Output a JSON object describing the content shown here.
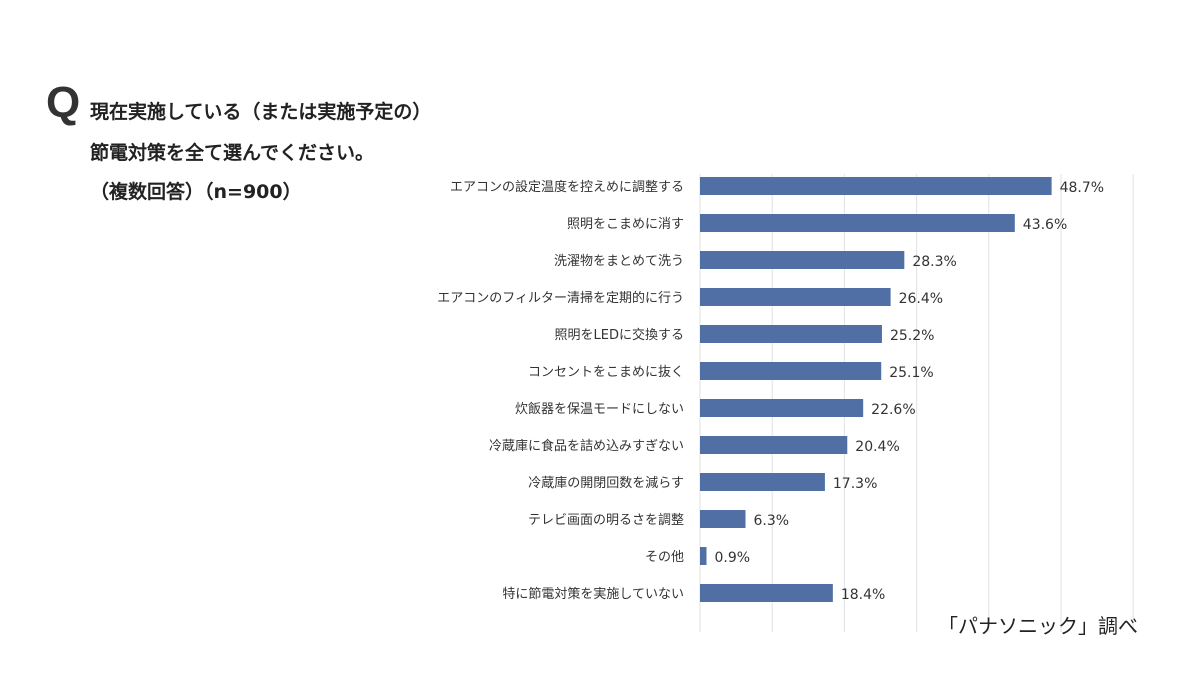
{
  "question": {
    "mark": "Q",
    "line1": "現在実施している（または実施予定の）",
    "line2": "節電対策を全て選んでください。",
    "line3": "（複数回答）（n=900）"
  },
  "source": "「パナソニック」調べ",
  "chart_data": {
    "type": "bar",
    "orientation": "horizontal",
    "title": "現在実施している（または実施予定の）節電対策を全て選んでください。（複数回答）（n=900）",
    "categories": [
      "エアコンの設定温度を控えめに調整する",
      "照明をこまめに消す",
      "洗濯物をまとめて洗う",
      "エアコンのフィルター清掃を定期的に行う",
      "照明をLEDに交換する",
      "コンセントをこまめに抜く",
      "炊飯器を保温モードにしない",
      "冷蔵庫に食品を詰め込みすぎない",
      "冷蔵庫の開閉回数を減らす",
      "テレビ画面の明るさを調整",
      "その他",
      "特に節電対策を実施していない"
    ],
    "values": [
      48.7,
      43.6,
      28.3,
      26.4,
      25.2,
      25.1,
      22.6,
      20.4,
      17.3,
      6.3,
      0.9,
      18.4
    ],
    "labels": [
      "48.7%",
      "43.6%",
      "28.3%",
      "26.4%",
      "25.2%",
      "25.1%",
      "22.6%",
      "20.4%",
      "17.3%",
      "6.3%",
      "0.9%",
      "18.4%"
    ],
    "xlim": [
      0,
      60
    ],
    "grid": true,
    "bar_color": "#4f6fa5",
    "xlabel": "",
    "ylabel": ""
  }
}
